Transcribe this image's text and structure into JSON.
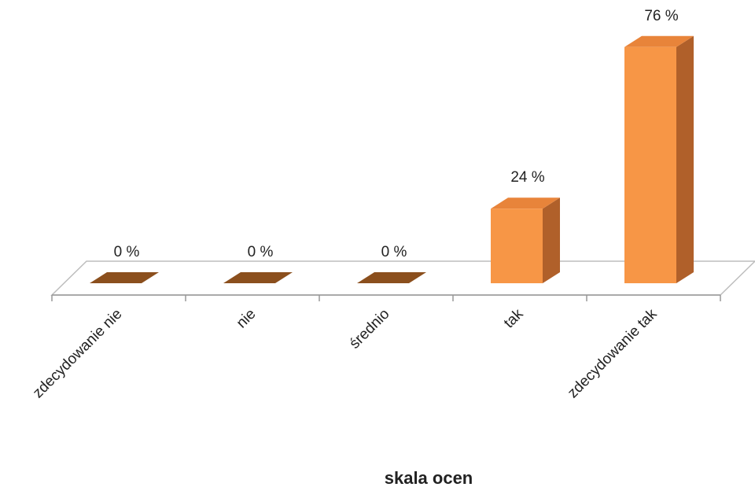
{
  "chart_data": {
    "type": "bar3d",
    "categories": [
      "zdecydowanie nie",
      "nie",
      "średnio",
      "tak",
      "zdecydowanie tak"
    ],
    "values": [
      0,
      0,
      0,
      24,
      76
    ],
    "value_labels": [
      "0 %",
      "0 %",
      "0 %",
      "24 %",
      "76 %"
    ],
    "x_label": "skala ocen",
    "color": "#f79646",
    "ylim": [
      0,
      80
    ]
  }
}
